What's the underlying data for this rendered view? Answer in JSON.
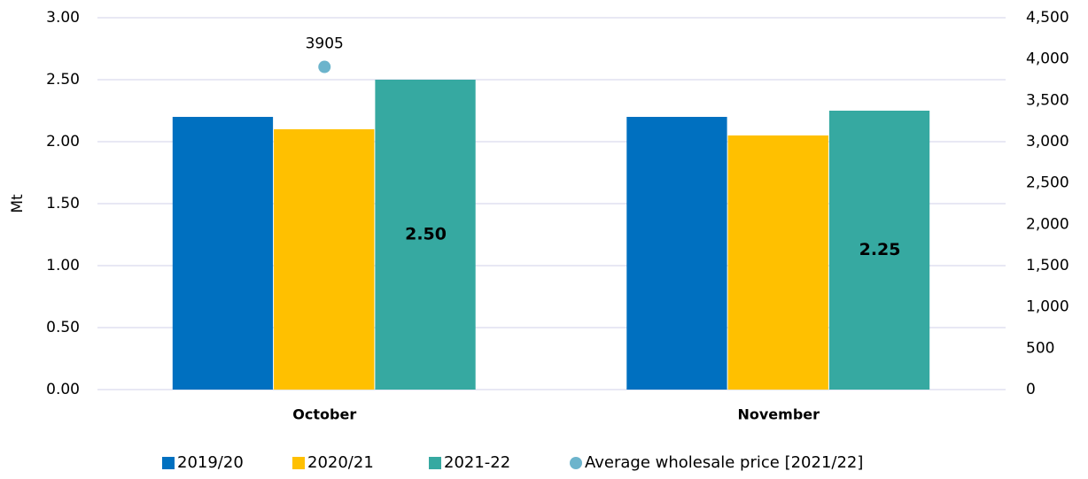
{
  "chart_data": {
    "type": "bar",
    "y_label": "Mt",
    "categories": [
      "October",
      "November"
    ],
    "series": [
      {
        "name": "2019/20",
        "color": "#0070c0",
        "values": [
          2.2,
          2.2
        ]
      },
      {
        "name": "2020/21",
        "color": "#ffc000",
        "values": [
          2.1,
          2.05
        ]
      },
      {
        "name": "2021-22",
        "color": "#36a9a1",
        "values": [
          2.5,
          2.25
        ],
        "value_labels": [
          "2.50",
          "2.25"
        ]
      },
      {
        "name": "Average wholesale price [2021/22]",
        "color": "#6cb4cc",
        "type": "scatter",
        "axis": "y2",
        "values": [
          3905,
          null
        ],
        "value_labels": [
          "3905",
          null
        ]
      }
    ],
    "ylim": [
      0,
      3
    ],
    "yticks": [
      {
        "value": 0,
        "label": "0.00"
      },
      {
        "value": 0.5,
        "label": "0.50"
      },
      {
        "value": 1,
        "label": "1.00"
      },
      {
        "value": 1.5,
        "label": "1.50"
      },
      {
        "value": 2,
        "label": "2.00"
      },
      {
        "value": 2.5,
        "label": "2.50"
      },
      {
        "value": 3,
        "label": "3.00"
      }
    ],
    "y2lim": [
      0,
      4500
    ],
    "y2ticks": [
      0,
      500,
      {
        "value": 1000,
        "label": "1,000"
      },
      {
        "value": 1500,
        "label": "1,500"
      },
      {
        "value": 2000,
        "label": "2,000"
      },
      {
        "value": 2500,
        "label": "2,500"
      },
      {
        "value": 3000,
        "label": "3,000"
      },
      {
        "value": 3500,
        "label": "3,500"
      },
      {
        "value": 4000,
        "label": "4,000"
      },
      {
        "value": 4500,
        "label": "4,500"
      }
    ],
    "grid": true
  }
}
